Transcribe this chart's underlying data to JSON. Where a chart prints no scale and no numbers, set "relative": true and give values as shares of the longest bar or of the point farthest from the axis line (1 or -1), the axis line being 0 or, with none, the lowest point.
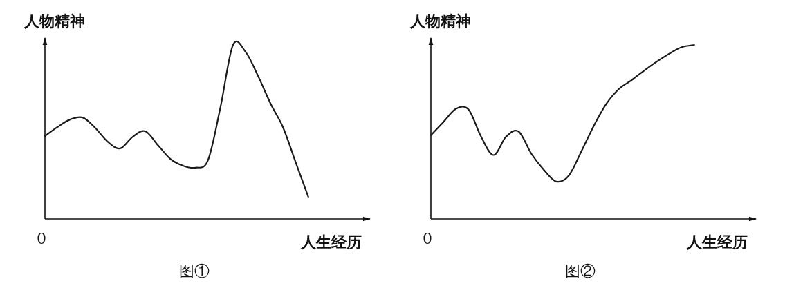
{
  "chart_data": [
    {
      "type": "line",
      "title": "图①",
      "xlabel": "人生经历",
      "ylabel": "人物精神",
      "relative": true,
      "annotations": [
        "0"
      ],
      "categories": [
        null,
        null,
        null,
        null,
        null,
        null,
        null,
        null,
        null,
        null,
        null,
        null,
        null,
        null,
        null,
        null,
        null,
        null,
        null,
        null,
        null,
        null
      ],
      "series": [
        {
          "color": "#1a1a1a",
          "values": [
            0.476,
            0.528,
            0.571,
            0.583,
            0.524,
            0.444,
            0.405,
            0.472,
            0.504,
            0.425,
            0.345,
            0.306,
            0.294,
            0.337,
            0.643,
            1,
            0.96,
            0.821,
            0.662,
            0.524,
            0.325,
            0.127
          ]
        }
      ]
    },
    {
      "type": "line",
      "title": "图②",
      "xlabel": "人生经历",
      "ylabel": "人物精神",
      "relative": true,
      "annotations": [
        "0"
      ],
      "categories": [
        null,
        null,
        null,
        null,
        null,
        null,
        null,
        null,
        null,
        null,
        null,
        null,
        null,
        null,
        null,
        null,
        null,
        null,
        null,
        null,
        null,
        null
      ],
      "series": [
        {
          "color": "#1a1a1a",
          "values": [
            0.481,
            0.557,
            0.633,
            0.629,
            0.473,
            0.367,
            0.473,
            0.502,
            0.376,
            0.283,
            0.215,
            0.249,
            0.388,
            0.536,
            0.662,
            0.747,
            0.797,
            0.852,
            0.903,
            0.949,
            0.987,
            1
          ]
        }
      ]
    }
  ]
}
